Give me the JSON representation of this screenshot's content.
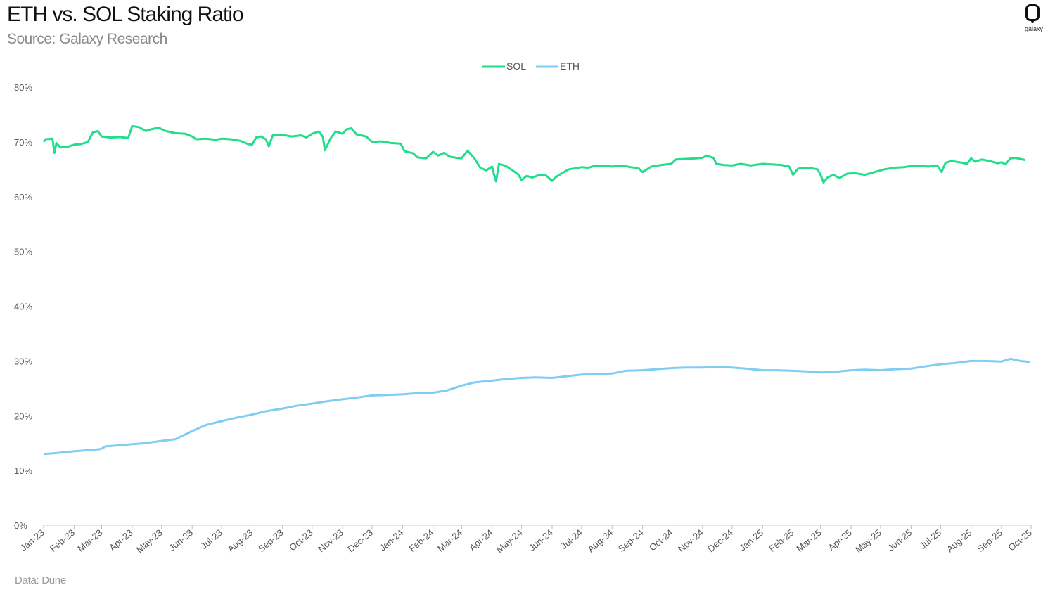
{
  "header": {
    "title": "ETH vs. SOL Staking Ratio",
    "subtitle": "Source: Galaxy Research"
  },
  "logo": {
    "text": "galaxy",
    "icon": "galaxy-logo-icon"
  },
  "footnote": "Data: Dune",
  "chart_data": {
    "type": "line",
    "title": "ETH vs. SOL Staking Ratio",
    "subtitle": "Source: Galaxy Research",
    "xlabel": "",
    "ylabel": "",
    "x_tick_labels": [
      "Jan-23",
      "Feb-23",
      "Mar-23",
      "Apr-23",
      "May-23",
      "Jun-23",
      "Jul-23",
      "Aug-23",
      "Sep-23",
      "Oct-23",
      "Nov-23",
      "Dec-23",
      "Jan-24",
      "Feb-24",
      "Mar-24",
      "Apr-24",
      "May-24",
      "Jun-24",
      "Jul-24",
      "Aug-24",
      "Sep-24",
      "Oct-24",
      "Nov-24",
      "Dec-24",
      "Jan-25",
      "Feb-25",
      "Mar-25",
      "Apr-25",
      "May-25",
      "Jun-25",
      "Jul-25",
      "Aug-25",
      "Sep-25",
      "Oct-25"
    ],
    "y_tick_labels": [
      "0%",
      "10%",
      "20%",
      "30%",
      "40%",
      "50%",
      "60%",
      "70%",
      "80%"
    ],
    "ylim": [
      0,
      80
    ],
    "y_unit": "%",
    "grid": false,
    "legend_position": "top-center",
    "series": [
      {
        "name": "SOL",
        "color": "#20DE8B",
        "points": [
          [
            "2023-01-01",
            70.0
          ],
          [
            "2023-01-03",
            70.5
          ],
          [
            "2023-01-10",
            70.6
          ],
          [
            "2023-01-12",
            68.0
          ],
          [
            "2023-01-14",
            69.8
          ],
          [
            "2023-01-18",
            69.0
          ],
          [
            "2023-01-25",
            69.1
          ],
          [
            "2023-02-01",
            69.5
          ],
          [
            "2023-02-08",
            69.6
          ],
          [
            "2023-02-15",
            70.0
          ],
          [
            "2023-02-20",
            71.7
          ],
          [
            "2023-02-25",
            72.0
          ],
          [
            "2023-03-01",
            71.0
          ],
          [
            "2023-03-10",
            70.8
          ],
          [
            "2023-03-20",
            70.9
          ],
          [
            "2023-03-28",
            70.7
          ],
          [
            "2023-04-01",
            72.9
          ],
          [
            "2023-04-08",
            72.7
          ],
          [
            "2023-04-15",
            72.0
          ],
          [
            "2023-04-20",
            72.3
          ],
          [
            "2023-04-28",
            72.6
          ],
          [
            "2023-05-05",
            72.0
          ],
          [
            "2023-05-15",
            71.6
          ],
          [
            "2023-05-25",
            71.5
          ],
          [
            "2023-06-01",
            71.0
          ],
          [
            "2023-06-05",
            70.5
          ],
          [
            "2023-06-15",
            70.6
          ],
          [
            "2023-06-25",
            70.4
          ],
          [
            "2023-07-01",
            70.6
          ],
          [
            "2023-07-10",
            70.5
          ],
          [
            "2023-07-20",
            70.2
          ],
          [
            "2023-07-28",
            69.6
          ],
          [
            "2023-08-01",
            69.5
          ],
          [
            "2023-08-05",
            70.8
          ],
          [
            "2023-08-10",
            71.0
          ],
          [
            "2023-08-15",
            70.5
          ],
          [
            "2023-08-18",
            69.2
          ],
          [
            "2023-08-22",
            71.2
          ],
          [
            "2023-09-01",
            71.3
          ],
          [
            "2023-09-10",
            71.0
          ],
          [
            "2023-09-20",
            71.2
          ],
          [
            "2023-09-25",
            70.8
          ],
          [
            "2023-10-01",
            71.5
          ],
          [
            "2023-10-08",
            71.9
          ],
          [
            "2023-10-12",
            70.9
          ],
          [
            "2023-10-14",
            68.5
          ],
          [
            "2023-10-20",
            70.7
          ],
          [
            "2023-10-25",
            71.9
          ],
          [
            "2023-11-01",
            71.5
          ],
          [
            "2023-11-05",
            72.3
          ],
          [
            "2023-11-10",
            72.5
          ],
          [
            "2023-11-15",
            71.4
          ],
          [
            "2023-11-25",
            71.0
          ],
          [
            "2023-12-01",
            70.0
          ],
          [
            "2023-12-10",
            70.1
          ],
          [
            "2023-12-20",
            69.8
          ],
          [
            "2023-12-30",
            69.7
          ],
          [
            "2024-01-03",
            68.3
          ],
          [
            "2024-01-12",
            67.9
          ],
          [
            "2024-01-16",
            67.2
          ],
          [
            "2024-01-25",
            67.0
          ],
          [
            "2024-02-01",
            68.2
          ],
          [
            "2024-02-06",
            67.5
          ],
          [
            "2024-02-12",
            68.0
          ],
          [
            "2024-02-18",
            67.3
          ],
          [
            "2024-02-25",
            67.1
          ],
          [
            "2024-03-01",
            67.0
          ],
          [
            "2024-03-07",
            68.4
          ],
          [
            "2024-03-14",
            67.0
          ],
          [
            "2024-03-20",
            65.3
          ],
          [
            "2024-03-26",
            64.8
          ],
          [
            "2024-04-01",
            65.5
          ],
          [
            "2024-04-03",
            64.0
          ],
          [
            "2024-04-05",
            62.8
          ],
          [
            "2024-04-08",
            66.0
          ],
          [
            "2024-04-15",
            65.6
          ],
          [
            "2024-04-22",
            64.8
          ],
          [
            "2024-04-28",
            64.0
          ],
          [
            "2024-05-01",
            63.0
          ],
          [
            "2024-05-06",
            63.8
          ],
          [
            "2024-05-12",
            63.5
          ],
          [
            "2024-05-18",
            63.9
          ],
          [
            "2024-05-25",
            64.0
          ],
          [
            "2024-06-01",
            62.9
          ],
          [
            "2024-06-05",
            63.6
          ],
          [
            "2024-06-12",
            64.4
          ],
          [
            "2024-06-18",
            65.0
          ],
          [
            "2024-06-25",
            65.2
          ],
          [
            "2024-07-01",
            65.4
          ],
          [
            "2024-07-08",
            65.3
          ],
          [
            "2024-07-15",
            65.7
          ],
          [
            "2024-07-25",
            65.6
          ],
          [
            "2024-08-01",
            65.5
          ],
          [
            "2024-08-10",
            65.7
          ],
          [
            "2024-08-20",
            65.4
          ],
          [
            "2024-08-28",
            65.2
          ],
          [
            "2024-09-01",
            64.5
          ],
          [
            "2024-09-10",
            65.5
          ],
          [
            "2024-09-20",
            65.8
          ],
          [
            "2024-09-30",
            66.0
          ],
          [
            "2024-10-05",
            66.8
          ],
          [
            "2024-10-15",
            66.9
          ],
          [
            "2024-10-25",
            67.0
          ],
          [
            "2024-11-01",
            67.1
          ],
          [
            "2024-11-05",
            67.5
          ],
          [
            "2024-11-12",
            67.1
          ],
          [
            "2024-11-15",
            66.0
          ],
          [
            "2024-11-22",
            65.8
          ],
          [
            "2024-12-01",
            65.7
          ],
          [
            "2024-12-10",
            66.0
          ],
          [
            "2024-12-20",
            65.7
          ],
          [
            "2025-01-01",
            66.0
          ],
          [
            "2025-01-10",
            65.9
          ],
          [
            "2025-01-20",
            65.8
          ],
          [
            "2025-01-28",
            65.5
          ],
          [
            "2025-02-01",
            64.0
          ],
          [
            "2025-02-06",
            65.1
          ],
          [
            "2025-02-12",
            65.3
          ],
          [
            "2025-02-20",
            65.2
          ],
          [
            "2025-02-26",
            65.0
          ],
          [
            "2025-03-01",
            64.0
          ],
          [
            "2025-03-04",
            62.6
          ],
          [
            "2025-03-08",
            63.5
          ],
          [
            "2025-03-14",
            64.0
          ],
          [
            "2025-03-20",
            63.4
          ],
          [
            "2025-03-28",
            64.2
          ],
          [
            "2025-04-05",
            64.3
          ],
          [
            "2025-04-15",
            64.0
          ],
          [
            "2025-04-25",
            64.5
          ],
          [
            "2025-05-05",
            65.0
          ],
          [
            "2025-05-15",
            65.3
          ],
          [
            "2025-05-25",
            65.4
          ],
          [
            "2025-06-01",
            65.6
          ],
          [
            "2025-06-10",
            65.7
          ],
          [
            "2025-06-18",
            65.5
          ],
          [
            "2025-06-28",
            65.6
          ],
          [
            "2025-07-02",
            64.5
          ],
          [
            "2025-07-06",
            66.2
          ],
          [
            "2025-07-12",
            66.5
          ],
          [
            "2025-07-20",
            66.3
          ],
          [
            "2025-07-28",
            66.0
          ],
          [
            "2025-08-01",
            67.0
          ],
          [
            "2025-08-05",
            66.4
          ],
          [
            "2025-08-12",
            66.8
          ],
          [
            "2025-08-20",
            66.5
          ],
          [
            "2025-08-28",
            66.1
          ],
          [
            "2025-09-01",
            66.3
          ],
          [
            "2025-09-05",
            65.9
          ],
          [
            "2025-09-10",
            67.0
          ],
          [
            "2025-09-15",
            67.1
          ],
          [
            "2025-09-25",
            66.7
          ]
        ]
      },
      {
        "name": "ETH",
        "color": "#7ECEF4",
        "points": [
          [
            "2023-01-01",
            13.0
          ],
          [
            "2023-01-15",
            13.2
          ],
          [
            "2023-02-01",
            13.5
          ],
          [
            "2023-02-15",
            13.7
          ],
          [
            "2023-02-28",
            13.9
          ],
          [
            "2023-03-05",
            14.4
          ],
          [
            "2023-03-20",
            14.6
          ],
          [
            "2023-04-01",
            14.8
          ],
          [
            "2023-04-15",
            15.0
          ],
          [
            "2023-05-01",
            15.4
          ],
          [
            "2023-05-15",
            15.7
          ],
          [
            "2023-06-01",
            17.2
          ],
          [
            "2023-06-15",
            18.3
          ],
          [
            "2023-07-01",
            19.0
          ],
          [
            "2023-07-15",
            19.6
          ],
          [
            "2023-08-01",
            20.2
          ],
          [
            "2023-08-15",
            20.8
          ],
          [
            "2023-09-01",
            21.3
          ],
          [
            "2023-09-15",
            21.8
          ],
          [
            "2023-10-01",
            22.2
          ],
          [
            "2023-10-15",
            22.6
          ],
          [
            "2023-11-01",
            23.0
          ],
          [
            "2023-11-15",
            23.3
          ],
          [
            "2023-12-01",
            23.7
          ],
          [
            "2023-12-15",
            23.8
          ],
          [
            "2024-01-01",
            23.9
          ],
          [
            "2024-01-15",
            24.1
          ],
          [
            "2024-02-01",
            24.2
          ],
          [
            "2024-02-15",
            24.6
          ],
          [
            "2024-03-01",
            25.5
          ],
          [
            "2024-03-15",
            26.1
          ],
          [
            "2024-04-01",
            26.4
          ],
          [
            "2024-04-15",
            26.7
          ],
          [
            "2024-05-01",
            26.9
          ],
          [
            "2024-05-15",
            27.0
          ],
          [
            "2024-06-01",
            26.9
          ],
          [
            "2024-06-15",
            27.2
          ],
          [
            "2024-07-01",
            27.5
          ],
          [
            "2024-07-15",
            27.6
          ],
          [
            "2024-08-01",
            27.7
          ],
          [
            "2024-08-15",
            28.2
          ],
          [
            "2024-09-01",
            28.3
          ],
          [
            "2024-09-15",
            28.5
          ],
          [
            "2024-10-01",
            28.7
          ],
          [
            "2024-10-15",
            28.8
          ],
          [
            "2024-11-01",
            28.8
          ],
          [
            "2024-11-15",
            28.9
          ],
          [
            "2024-12-01",
            28.8
          ],
          [
            "2024-12-15",
            28.6
          ],
          [
            "2025-01-01",
            28.3
          ],
          [
            "2025-01-15",
            28.3
          ],
          [
            "2025-02-01",
            28.2
          ],
          [
            "2025-02-15",
            28.1
          ],
          [
            "2025-03-01",
            27.9
          ],
          [
            "2025-03-15",
            28.0
          ],
          [
            "2025-04-01",
            28.3
          ],
          [
            "2025-04-15",
            28.4
          ],
          [
            "2025-05-01",
            28.3
          ],
          [
            "2025-05-15",
            28.5
          ],
          [
            "2025-06-01",
            28.6
          ],
          [
            "2025-06-15",
            29.0
          ],
          [
            "2025-07-01",
            29.4
          ],
          [
            "2025-07-15",
            29.6
          ],
          [
            "2025-08-01",
            30.0
          ],
          [
            "2025-08-15",
            30.0
          ],
          [
            "2025-09-01",
            29.9
          ],
          [
            "2025-09-10",
            30.4
          ],
          [
            "2025-09-20",
            30.0
          ],
          [
            "2025-09-30",
            29.8
          ]
        ]
      }
    ]
  }
}
